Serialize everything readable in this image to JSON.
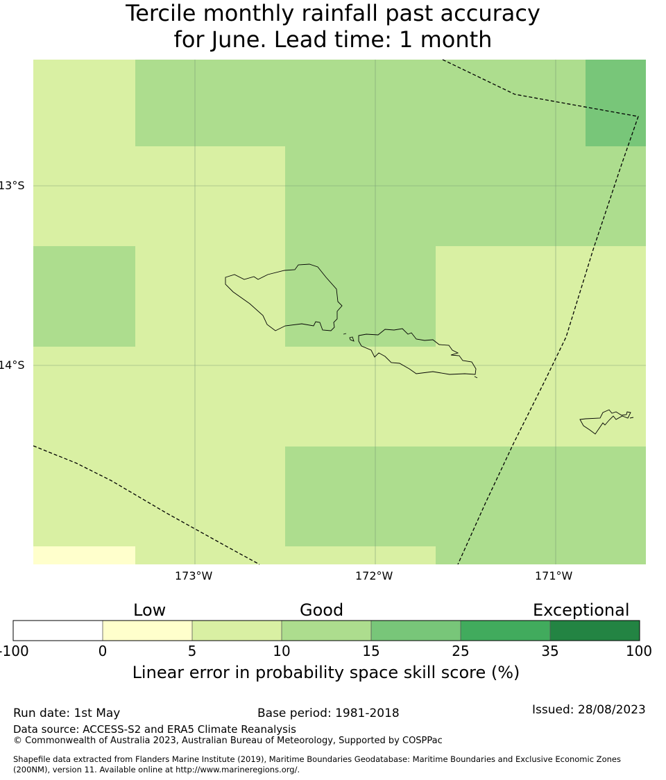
{
  "title": {
    "line1": "Tercile monthly rainfall past accuracy",
    "line2": "for June. Lead time: 1 month"
  },
  "map": {
    "lat_labels": [
      "13°S",
      "14°S"
    ],
    "lon_labels": [
      "173°W",
      "172°W",
      "171°W"
    ],
    "colors": {
      "c0_5": "#ffffcc",
      "c5_10": "#d9f0a3",
      "c10_15": "#addd8e",
      "c15_25": "#78c679",
      "c25_35": "#41ab5d",
      "c35_100": "#238443"
    }
  },
  "colorbar": {
    "categories": [
      "Low",
      "Good",
      "Exceptional"
    ],
    "ticks": [
      "-100",
      "0",
      "5",
      "10",
      "15",
      "25",
      "35",
      "100"
    ],
    "bin_colors": [
      "#ffffff",
      "#ffffcc",
      "#d9f0a3",
      "#addd8e",
      "#78c679",
      "#41ab5d",
      "#238443"
    ],
    "label": "Linear error in probability space skill score (%)"
  },
  "footer": {
    "run_date": "Run date: 1st May",
    "base_period": "Base period: 1981-2018",
    "issued": "Issued: 28/08/2023",
    "data_source": "Data source: ACCESS-S2 and ERA5 Climate Reanalysis",
    "copyright": "© Commonwealth of Australia 2023, Australian Bureau of Meteorology, Supported by COSPPac",
    "shapefile_line1": "Shapefile data extracted from Flanders Marine Institute (2019), Maritime Boundaries Geodatabase: Maritime Boundaries and Exclusive Economic Zones",
    "shapefile_line2": "(200NM), version 11. Available online at http://www.marineregions.org/."
  }
}
